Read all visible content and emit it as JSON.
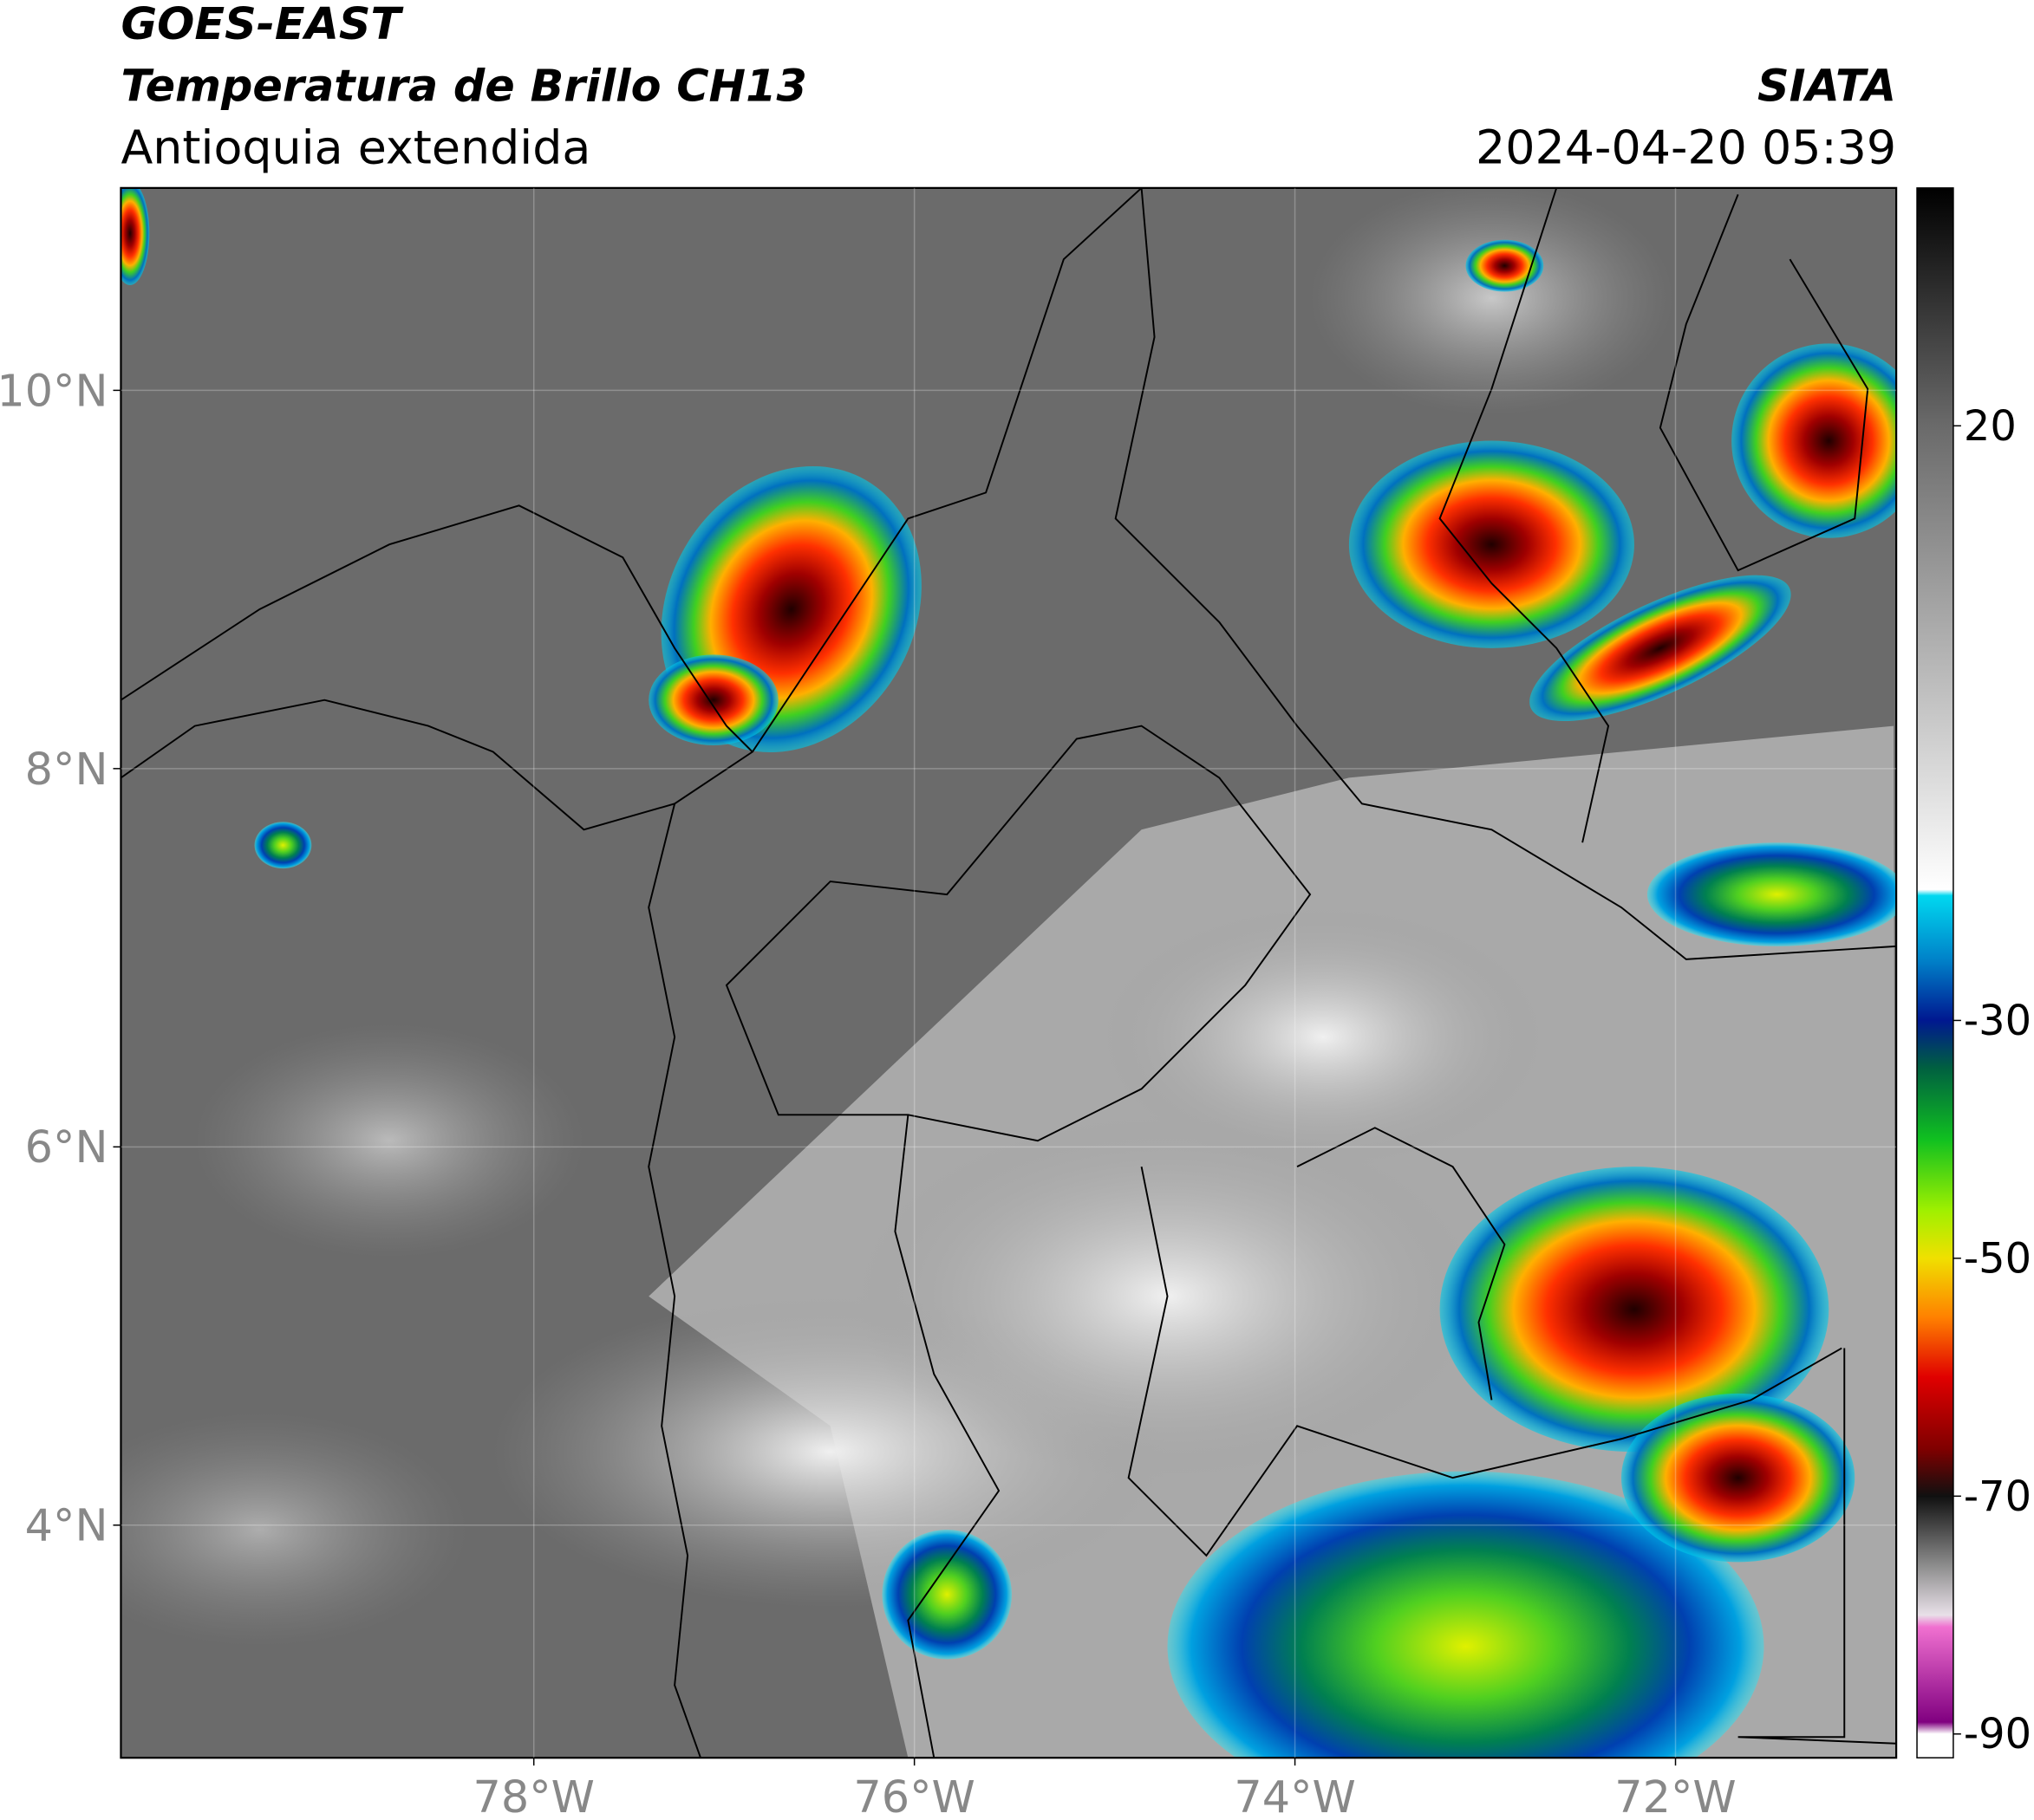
{
  "header": {
    "line1": "GOES-EAST",
    "line2": "Temperatura de Brillo CH13",
    "line3": "Antioquia extendida",
    "agency": "SIATA",
    "datetime": "2024-04-20 05:39"
  },
  "map": {
    "xlim": [
      -80.17,
      -70.84
    ],
    "ylim": [
      2.77,
      11.07
    ],
    "xticks": [
      {
        "value": -78,
        "label": "78°W"
      },
      {
        "value": -76,
        "label": "76°W"
      },
      {
        "value": -74,
        "label": "74°W"
      },
      {
        "value": -72,
        "label": "72°W"
      }
    ],
    "yticks": [
      {
        "value": 10,
        "label": "10°N"
      },
      {
        "value": 8,
        "label": "8°N"
      },
      {
        "value": 6,
        "label": "6°N"
      },
      {
        "value": 4,
        "label": "4°N"
      }
    ],
    "grid": true
  },
  "colorbar": {
    "clim": [
      -92,
      40
    ],
    "ticks": [
      20,
      -30,
      -50,
      -70,
      -90
    ],
    "colormap": [
      {
        "value": 40,
        "color": "#000000"
      },
      {
        "value": 20,
        "color": "#6a6a6a"
      },
      {
        "value": -19,
        "color": "#ffffff"
      },
      {
        "value": -19.5,
        "color": "#00d8f0"
      },
      {
        "value": -25,
        "color": "#0080c8"
      },
      {
        "value": -30,
        "color": "#001890"
      },
      {
        "value": -34,
        "color": "#006040"
      },
      {
        "value": -40,
        "color": "#10c020"
      },
      {
        "value": -46,
        "color": "#a0f000"
      },
      {
        "value": -50,
        "color": "#f0e000"
      },
      {
        "value": -55,
        "color": "#ff8000"
      },
      {
        "value": -60,
        "color": "#e00000"
      },
      {
        "value": -66,
        "color": "#800000"
      },
      {
        "value": -70,
        "color": "#101010"
      },
      {
        "value": -76,
        "color": "#909090"
      },
      {
        "value": -80,
        "color": "#e8e0e8"
      },
      {
        "value": -81,
        "color": "#f070d0"
      },
      {
        "value": -89,
        "color": "#800080"
      },
      {
        "value": -90,
        "color": "#ffffff"
      }
    ]
  }
}
